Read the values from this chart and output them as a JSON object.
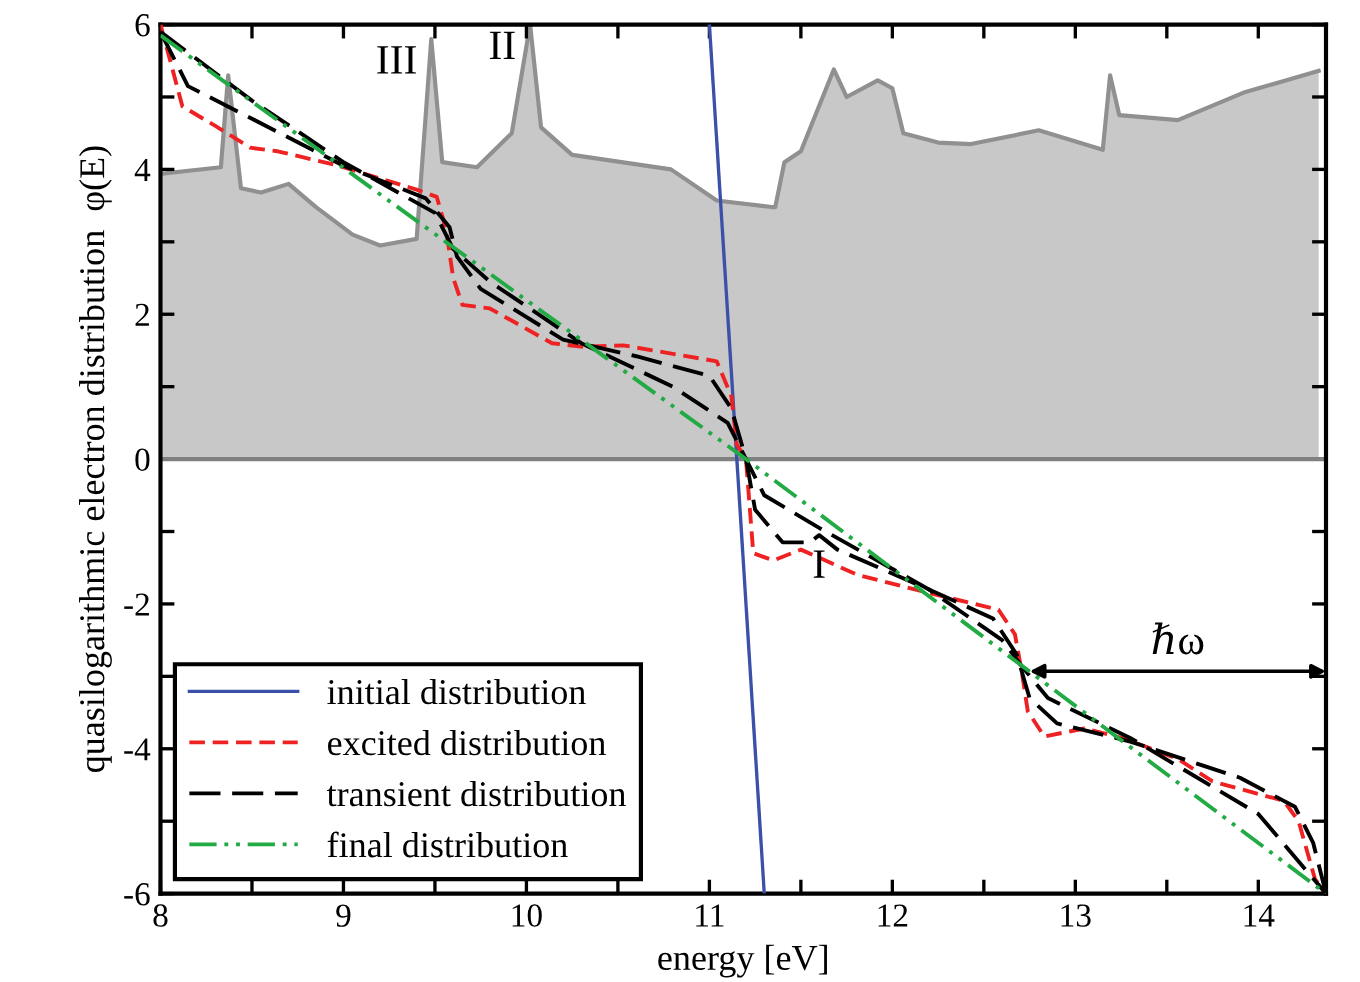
{
  "chart_data": {
    "type": "line",
    "xlabel": "energy [eV]",
    "ylabel": "quasilogarithmic electron distribution  φ(E)",
    "xlim": [
      8,
      14.37
    ],
    "ylim": [
      -6,
      6
    ],
    "xticks": [
      8,
      {
        "value": 8.5,
        "label": null
      },
      9,
      {
        "value": 9.5,
        "label": null
      },
      10,
      {
        "value": 10.5,
        "label": null
      },
      11,
      {
        "value": 11.5,
        "label": null
      },
      12,
      {
        "value": 12.5,
        "label": null
      },
      13,
      {
        "value": 13.5,
        "label": null
      },
      14
    ],
    "yticks": [
      -6,
      {
        "value": -5,
        "label": null
      },
      -4,
      {
        "value": -3,
        "label": null
      },
      -2,
      {
        "value": -1,
        "label": null
      },
      0,
      {
        "value": 1,
        "label": null
      },
      2,
      {
        "value": 3,
        "label": null
      },
      4,
      {
        "value": 5,
        "label": null
      },
      6
    ],
    "legend": "bottom left",
    "grid": false,
    "ref_lines": [
      {
        "axis": "y",
        "value": 0,
        "color": "#808080",
        "line_style": "solid"
      }
    ],
    "annotations": [
      {
        "text": "III",
        "x": 9.48,
        "y": 5.8
      },
      {
        "text": "II",
        "x": 10.02,
        "y": 6.0
      },
      {
        "text": "I",
        "x": 11.6,
        "y": -1.5
      },
      {
        "text": "ℏω",
        "x": 12.75,
        "y": -2.93
      }
    ],
    "series": [
      {
        "type": "area",
        "color": "#c8c8c8",
        "x": [
          8,
          8.33,
          8.37,
          8.44,
          8.55,
          8.7,
          8.85,
          9.05,
          9.2,
          9.4,
          9.48,
          9.54,
          9.73,
          9.92,
          10.02,
          10.08,
          10.25,
          10.79,
          11.04,
          11.34,
          11.36,
          11.41,
          11.5,
          11.68,
          11.75,
          11.92,
          12.0,
          12.06,
          12.25,
          12.43,
          12.8,
          13.15,
          13.19,
          13.24,
          13.56,
          13.93,
          14.14,
          14.33
        ],
        "values": [
          3.94,
          4.03,
          5.3,
          3.74,
          3.68,
          3.8,
          3.48,
          3.1,
          2.95,
          3.04,
          5.8,
          4.1,
          4.03,
          4.5,
          6.0,
          4.58,
          4.2,
          4.0,
          3.57,
          3.48,
          3.48,
          4.1,
          4.25,
          5.38,
          5.0,
          5.23,
          5.12,
          4.5,
          4.37,
          4.35,
          4.54,
          4.27,
          5.3,
          4.75,
          4.68,
          5.07,
          5.22,
          5.36
        ]
      },
      {
        "name": "initial distribution",
        "color": "#3b50a8",
        "line_style": "solid",
        "x": [
          11.0,
          11.3
        ],
        "values": [
          6,
          -6
        ]
      },
      {
        "name": "excited distribution",
        "color": "#ee2222",
        "line_style": "dashed",
        "x": [
          8,
          8.12,
          8.3,
          8.49,
          8.64,
          8.96,
          9.4,
          9.51,
          9.56,
          9.6,
          9.65,
          9.8,
          10.14,
          10.31,
          10.53,
          11.04,
          11.12,
          11.15,
          11.2,
          11.24,
          11.35,
          11.5,
          11.59,
          11.81,
          12.17,
          12.58,
          12.67,
          12.71,
          12.74,
          12.83,
          13.05,
          13.27,
          13.56,
          13.75,
          14.14,
          14.22,
          14.31,
          14.37
        ],
        "values": [
          6.0,
          4.87,
          4.6,
          4.3,
          4.25,
          4.06,
          3.72,
          3.62,
          3.18,
          2.5,
          2.13,
          2.08,
          1.6,
          1.55,
          1.57,
          1.35,
          0.87,
          0.2,
          0,
          -1.3,
          -1.4,
          -1.25,
          -1.35,
          -1.6,
          -1.83,
          -2.08,
          -2.42,
          -2.98,
          -3.48,
          -3.83,
          -3.72,
          -3.86,
          -4.14,
          -4.45,
          -4.72,
          -5.0,
          -5.8,
          -6
        ]
      },
      {
        "name": "transient distribution",
        "color": "#000000",
        "line_style": "longdash",
        "x": [
          8,
          8.15,
          8.5,
          9.0,
          9.45,
          9.58,
          9.62,
          9.75,
          10.2,
          10.6,
          11.0,
          11.12,
          11.2,
          11.25,
          11.4,
          11.55,
          11.6,
          11.7,
          12.2,
          12.55,
          12.68,
          12.75,
          12.9,
          13.3,
          13.9,
          14.2,
          14.3,
          14.37
        ],
        "values": [
          5.9,
          5.15,
          4.7,
          4.05,
          3.6,
          3.2,
          2.8,
          2.35,
          1.65,
          1.42,
          1.15,
          0.7,
          0,
          -0.7,
          -1.15,
          -1.15,
          -1.05,
          -1.25,
          -1.8,
          -2.2,
          -2.7,
          -3.3,
          -3.65,
          -3.9,
          -4.4,
          -4.8,
          -5.3,
          -6
        ]
      },
      {
        "color": "#000000",
        "line_style": "longdash",
        "x": [
          8,
          8.5,
          9.0,
          9.5,
          9.6,
          9.8,
          10.3,
          10.8,
          11.1,
          11.2,
          11.3,
          11.6,
          12.2,
          12.6,
          12.72,
          12.85,
          13.3,
          14.0,
          14.37
        ],
        "values": [
          5.9,
          4.95,
          4.1,
          3.4,
          2.9,
          2.45,
          1.6,
          1.0,
          0.5,
          0,
          -0.5,
          -0.95,
          -1.8,
          -2.5,
          -2.9,
          -3.3,
          -3.85,
          -4.9,
          -6
        ]
      },
      {
        "name": "final distribution",
        "color": "#22aa44",
        "line_style": "dashdotdot",
        "x": [
          8,
          11.2,
          14.37
        ],
        "values": [
          5.85,
          0,
          -6
        ]
      }
    ]
  }
}
